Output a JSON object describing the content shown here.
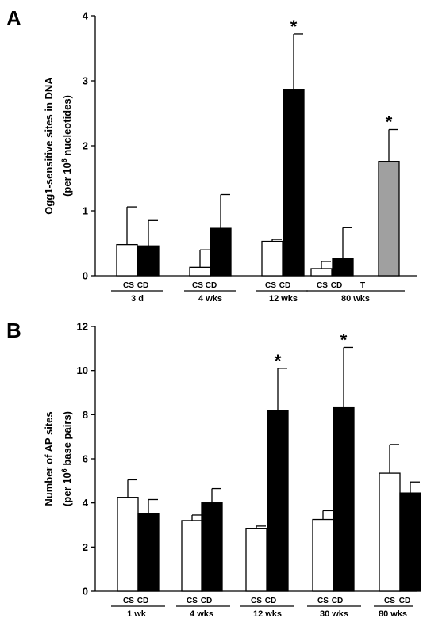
{
  "chart_data": [
    {
      "type": "bar",
      "panel_label": "A",
      "ylabel_line1": "Ogg1-sensitive sites in DNA",
      "ylabel_line2_pre": "(per 10",
      "ylabel_line2_sup": "6",
      "ylabel_line2_post": " nucleotides)",
      "ylim": [
        0,
        4
      ],
      "yticks": [
        "0",
        "1",
        "2",
        "3",
        "4"
      ],
      "groups": [
        {
          "label": "3 d",
          "conditions": [
            "CS",
            "CD"
          ],
          "bars": [
            {
              "condition": "CS",
              "value": 0.48,
              "error": 0.58,
              "fill": "#ffffff",
              "star": ""
            },
            {
              "condition": "CD",
              "value": 0.46,
              "error": 0.39,
              "fill": "#000000",
              "star": ""
            }
          ]
        },
        {
          "label": "4 wks",
          "conditions": [
            "CS",
            "CD"
          ],
          "bars": [
            {
              "condition": "CS",
              "value": 0.13,
              "error": 0.27,
              "fill": "#ffffff",
              "star": ""
            },
            {
              "condition": "CD",
              "value": 0.73,
              "error": 0.52,
              "fill": "#000000",
              "star": ""
            }
          ]
        },
        {
          "label": "12 wks",
          "conditions": [
            "CS",
            "CD"
          ],
          "bars": [
            {
              "condition": "CS",
              "value": 0.53,
              "error": 0.03,
              "fill": "#ffffff",
              "star": ""
            },
            {
              "condition": "CD",
              "value": 2.87,
              "error": 0.85,
              "fill": "#000000",
              "star": "*"
            }
          ]
        },
        {
          "label": "80 wks",
          "conditions": [
            "CS",
            "CD",
            "T"
          ],
          "bars": [
            {
              "condition": "CS",
              "value": 0.11,
              "error": 0.11,
              "fill": "#ffffff",
              "star": ""
            },
            {
              "condition": "CD",
              "value": 0.27,
              "error": 0.47,
              "fill": "#000000",
              "star": ""
            },
            {
              "condition": "T",
              "value": 1.76,
              "error": 0.49,
              "fill": "#a0a0a0",
              "star": "*"
            }
          ]
        }
      ]
    },
    {
      "type": "bar",
      "panel_label": "B",
      "ylabel_line1": "Number of AP sites",
      "ylabel_line2_pre": "(per 10",
      "ylabel_line2_sup": "6",
      "ylabel_line2_post": " base pairs)",
      "ylim": [
        0,
        12
      ],
      "yticks": [
        "0",
        "2",
        "4",
        "6",
        "8",
        "10",
        "12"
      ],
      "groups": [
        {
          "label": "1 wk",
          "conditions": [
            "CS",
            "CD"
          ],
          "bars": [
            {
              "condition": "CS",
              "value": 4.25,
              "error": 0.8,
              "fill": "#ffffff",
              "star": ""
            },
            {
              "condition": "CD",
              "value": 3.5,
              "error": 0.65,
              "fill": "#000000",
              "star": ""
            }
          ]
        },
        {
          "label": "4 wks",
          "conditions": [
            "CS",
            "CD"
          ],
          "bars": [
            {
              "condition": "CS",
              "value": 3.2,
              "error": 0.25,
              "fill": "#ffffff",
              "star": ""
            },
            {
              "condition": "CD",
              "value": 4.0,
              "error": 0.65,
              "fill": "#000000",
              "star": ""
            }
          ]
        },
        {
          "label": "12 wks",
          "conditions": [
            "CS",
            "CD"
          ],
          "bars": [
            {
              "condition": "CS",
              "value": 2.85,
              "error": 0.1,
              "fill": "#ffffff",
              "star": ""
            },
            {
              "condition": "CD",
              "value": 8.2,
              "error": 1.9,
              "fill": "#000000",
              "star": "*"
            }
          ]
        },
        {
          "label": "30 wks",
          "conditions": [
            "CS",
            "CD"
          ],
          "bars": [
            {
              "condition": "CS",
              "value": 3.25,
              "error": 0.4,
              "fill": "#ffffff",
              "star": ""
            },
            {
              "condition": "CD",
              "value": 8.35,
              "error": 2.7,
              "fill": "#000000",
              "star": "*"
            }
          ]
        },
        {
          "label": "80 wks",
          "conditions": [
            "CS",
            "CD"
          ],
          "bars": [
            {
              "condition": "CS",
              "value": 5.35,
              "error": 1.3,
              "fill": "#ffffff",
              "star": ""
            },
            {
              "condition": "CD",
              "value": 4.45,
              "error": 0.5,
              "fill": "#000000",
              "star": ""
            }
          ]
        }
      ]
    }
  ]
}
